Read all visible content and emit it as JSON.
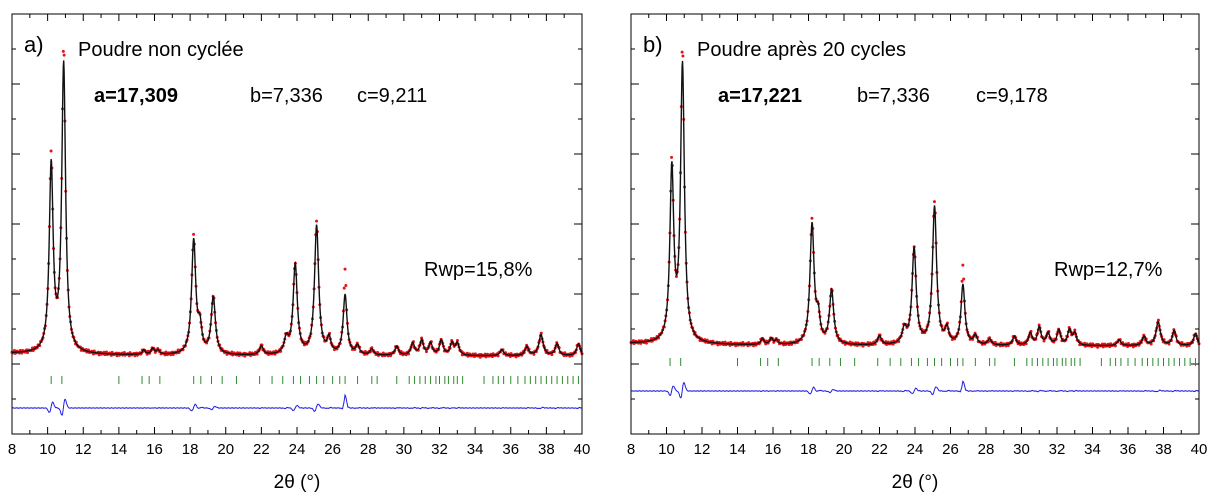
{
  "chart_data": [
    {
      "type": "line",
      "panel_label": "a)",
      "title": "Poudre non cyclée",
      "params": {
        "a": "a=17,309",
        "b": "b=7,336",
        "c": "c=9,211"
      },
      "rwp": "Rwp=15,8%",
      "xlabel": "2θ (°)",
      "ylabel": "",
      "xlim": [
        8,
        40
      ],
      "xticks": [
        "8",
        "10",
        "12",
        "14",
        "16",
        "18",
        "20",
        "22",
        "24",
        "26",
        "28",
        "30",
        "32",
        "34",
        "36",
        "38",
        "40"
      ],
      "colors": {
        "observed": "#e8121a",
        "calculated": "#111111",
        "difference": "#1f1fe0",
        "bragg": "#2e8b2e"
      },
      "peaks": [
        {
          "x": 10.2,
          "h": 0.62,
          "w": 0.13
        },
        {
          "x": 10.9,
          "h": 0.96,
          "w": 0.13
        },
        {
          "x": 15.4,
          "h": 0.015,
          "w": 0.1
        },
        {
          "x": 15.9,
          "h": 0.02,
          "w": 0.1
        },
        {
          "x": 16.2,
          "h": 0.015,
          "w": 0.1
        },
        {
          "x": 18.2,
          "h": 0.38,
          "w": 0.14
        },
        {
          "x": 18.55,
          "h": 0.08,
          "w": 0.12
        },
        {
          "x": 19.3,
          "h": 0.19,
          "w": 0.14
        },
        {
          "x": 22.0,
          "h": 0.03,
          "w": 0.12
        },
        {
          "x": 23.4,
          "h": 0.05,
          "w": 0.14
        },
        {
          "x": 23.9,
          "h": 0.3,
          "w": 0.14
        },
        {
          "x": 25.1,
          "h": 0.43,
          "w": 0.14
        },
        {
          "x": 25.8,
          "h": 0.05,
          "w": 0.12
        },
        {
          "x": 26.7,
          "h": 0.2,
          "w": 0.13
        },
        {
          "x": 27.4,
          "h": 0.03,
          "w": 0.12
        },
        {
          "x": 28.2,
          "h": 0.02,
          "w": 0.12
        },
        {
          "x": 29.6,
          "h": 0.03,
          "w": 0.12
        },
        {
          "x": 30.5,
          "h": 0.04,
          "w": 0.12
        },
        {
          "x": 31.0,
          "h": 0.05,
          "w": 0.12
        },
        {
          "x": 31.5,
          "h": 0.04,
          "w": 0.12
        },
        {
          "x": 32.1,
          "h": 0.05,
          "w": 0.12
        },
        {
          "x": 32.7,
          "h": 0.04,
          "w": 0.12
        },
        {
          "x": 33.0,
          "h": 0.04,
          "w": 0.12
        },
        {
          "x": 35.5,
          "h": 0.02,
          "w": 0.12
        },
        {
          "x": 36.9,
          "h": 0.03,
          "w": 0.12
        },
        {
          "x": 37.7,
          "h": 0.07,
          "w": 0.14
        },
        {
          "x": 38.6,
          "h": 0.04,
          "w": 0.12
        },
        {
          "x": 39.8,
          "h": 0.04,
          "w": 0.12
        }
      ],
      "obs_scale": [
        {
          "x": 10.2,
          "f": 1.05
        },
        {
          "x": 10.9,
          "f": 1.07
        },
        {
          "x": 25.1,
          "f": 1.04
        },
        {
          "x": 26.7,
          "f": 1.4
        },
        {
          "x": 18.2,
          "f": 1.03
        }
      ],
      "bragg_positions": [
        10.2,
        10.8,
        14.0,
        15.3,
        15.7,
        16.3,
        18.2,
        18.6,
        19.2,
        19.8,
        20.6,
        21.9,
        22.6,
        23.2,
        23.8,
        24.2,
        24.7,
        25.1,
        25.5,
        26.0,
        26.4,
        26.7,
        27.4,
        28.2,
        28.5,
        29.6,
        30.3,
        30.6,
        30.9,
        31.2,
        31.5,
        31.8,
        32.0,
        32.3,
        32.5,
        32.8,
        33.0,
        33.3,
        34.5,
        35.0,
        35.3,
        35.6,
        36.0,
        36.4,
        36.8,
        37.1,
        37.4,
        37.7,
        38.0,
        38.3,
        38.6,
        38.9,
        39.2,
        39.5,
        39.8
      ]
    },
    {
      "type": "line",
      "panel_label": "b)",
      "title": "Poudre après 20 cycles",
      "params": {
        "a": "a=17,221",
        "b": "b=7,336",
        "c": "c=9,178"
      },
      "rwp": "Rwp=12,7%",
      "xlabel": "2θ (°)",
      "ylabel": "",
      "xlim": [
        8,
        40
      ],
      "xticks": [
        "8",
        "10",
        "12",
        "14",
        "16",
        "18",
        "20",
        "22",
        "24",
        "26",
        "28",
        "30",
        "32",
        "34",
        "36",
        "38",
        "40"
      ],
      "colors": {
        "observed": "#e8121a",
        "calculated": "#111111",
        "difference": "#1f1fe0",
        "bragg": "#2e8b2e"
      },
      "peaks": [
        {
          "x": 10.3,
          "h": 0.57,
          "w": 0.13
        },
        {
          "x": 10.9,
          "h": 0.92,
          "w": 0.13
        },
        {
          "x": 15.4,
          "h": 0.02,
          "w": 0.1
        },
        {
          "x": 15.9,
          "h": 0.02,
          "w": 0.1
        },
        {
          "x": 16.2,
          "h": 0.015,
          "w": 0.1
        },
        {
          "x": 18.2,
          "h": 0.4,
          "w": 0.14
        },
        {
          "x": 18.55,
          "h": 0.08,
          "w": 0.12
        },
        {
          "x": 19.3,
          "h": 0.18,
          "w": 0.14
        },
        {
          "x": 22.0,
          "h": 0.03,
          "w": 0.12
        },
        {
          "x": 23.4,
          "h": 0.05,
          "w": 0.14
        },
        {
          "x": 23.95,
          "h": 0.32,
          "w": 0.14
        },
        {
          "x": 25.1,
          "h": 0.46,
          "w": 0.14
        },
        {
          "x": 25.8,
          "h": 0.05,
          "w": 0.12
        },
        {
          "x": 26.7,
          "h": 0.2,
          "w": 0.13
        },
        {
          "x": 27.4,
          "h": 0.03,
          "w": 0.12
        },
        {
          "x": 28.2,
          "h": 0.02,
          "w": 0.12
        },
        {
          "x": 29.6,
          "h": 0.03,
          "w": 0.12
        },
        {
          "x": 30.5,
          "h": 0.04,
          "w": 0.12
        },
        {
          "x": 31.0,
          "h": 0.06,
          "w": 0.12
        },
        {
          "x": 31.5,
          "h": 0.04,
          "w": 0.12
        },
        {
          "x": 32.1,
          "h": 0.05,
          "w": 0.12
        },
        {
          "x": 32.7,
          "h": 0.05,
          "w": 0.12
        },
        {
          "x": 33.0,
          "h": 0.04,
          "w": 0.12
        },
        {
          "x": 35.5,
          "h": 0.02,
          "w": 0.12
        },
        {
          "x": 36.9,
          "h": 0.03,
          "w": 0.12
        },
        {
          "x": 37.7,
          "h": 0.08,
          "w": 0.14
        },
        {
          "x": 38.6,
          "h": 0.05,
          "w": 0.12
        },
        {
          "x": 39.8,
          "h": 0.04,
          "w": 0.12
        }
      ],
      "obs_scale": [
        {
          "x": 10.3,
          "f": 1.03
        },
        {
          "x": 10.9,
          "f": 1.07
        },
        {
          "x": 25.1,
          "f": 1.04
        },
        {
          "x": 26.7,
          "f": 1.3
        },
        {
          "x": 18.2,
          "f": 1.03
        }
      ],
      "bragg_positions": [
        10.2,
        10.8,
        14.0,
        15.3,
        15.7,
        16.3,
        18.2,
        18.6,
        19.2,
        19.8,
        20.6,
        21.9,
        22.6,
        23.2,
        23.8,
        24.2,
        24.7,
        25.1,
        25.5,
        26.0,
        26.4,
        26.7,
        27.4,
        28.2,
        28.5,
        29.6,
        30.3,
        30.6,
        30.9,
        31.2,
        31.5,
        31.8,
        32.0,
        32.3,
        32.5,
        32.8,
        33.0,
        33.3,
        34.5,
        35.0,
        35.3,
        35.6,
        36.0,
        36.4,
        36.8,
        37.1,
        37.4,
        37.7,
        38.0,
        38.3,
        38.6,
        38.9,
        39.2,
        39.5,
        39.8
      ]
    }
  ]
}
